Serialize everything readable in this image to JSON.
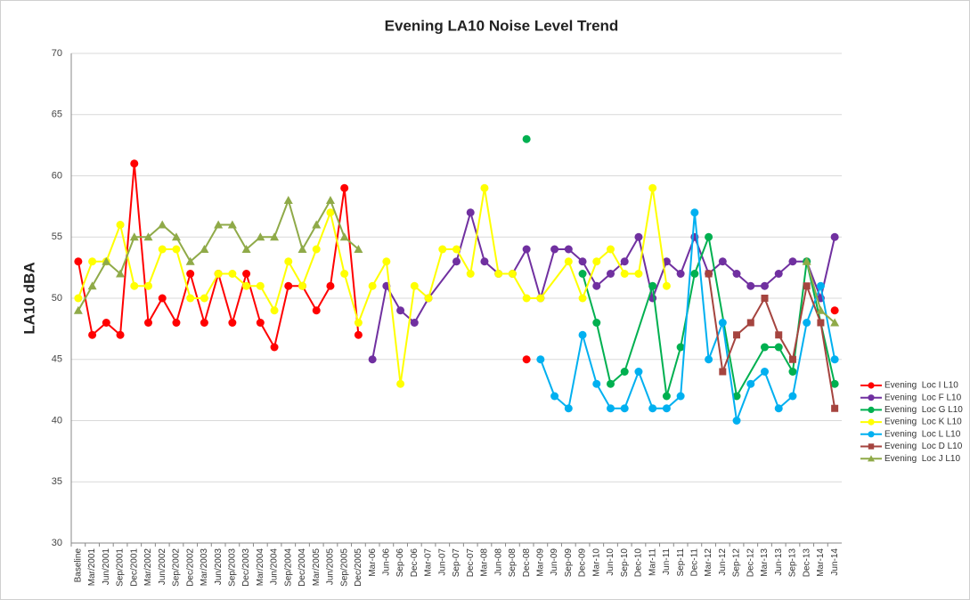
{
  "chart_data": {
    "type": "line",
    "title": "Evening LA10 Noise Level Trend",
    "y_label": "LA10 dBA",
    "categories": [
      "Baseline",
      "Mar/2001",
      "Jun/2001",
      "Sep/2001",
      "Dec/2001",
      "Mar/2002",
      "Jun/2002",
      "Sep/2002",
      "Dec/2002",
      "Mar/2003",
      "Jun/2003",
      "Sep/2003",
      "Dec/2003",
      "Mar/2004",
      "Jun/2004",
      "Sep/2004",
      "Dec/2004",
      "Mar/2005",
      "Jun/2005",
      "Sep/2005",
      "Dec/2005",
      "Mar-06",
      "Jun-06",
      "Sep-06",
      "Dec-06",
      "Mar-07",
      "Jun-07",
      "Sep-07",
      "Dec-07",
      "Mar-08",
      "Jun-08",
      "Sep-08",
      "Dec-08",
      "Mar-09",
      "Jun-09",
      "Sep-09",
      "Dec-09",
      "Mar-10",
      "Jun-10",
      "Sep-10",
      "Dec-10",
      "Mar-11",
      "Jun-11",
      "Sep-11",
      "Dec-11",
      "Mar-12",
      "Jun-12",
      "Sep-12",
      "Dec-12",
      "Mar-13",
      "Jun-13",
      "Sep-13",
      "Dec-13",
      "Mar-14",
      "Jun-14"
    ],
    "series": [
      {
        "name": "Evening  Loc I L10",
        "color": "#ff0000",
        "marker": "circle",
        "values": [
          53,
          47,
          48,
          47,
          61,
          48,
          50,
          48,
          52,
          48,
          52,
          48,
          52,
          48,
          46,
          51,
          51,
          49,
          51,
          59,
          47,
          null,
          null,
          null,
          null,
          null,
          null,
          null,
          null,
          null,
          null,
          null,
          45,
          null,
          null,
          null,
          null,
          null,
          null,
          null,
          null,
          null,
          null,
          null,
          null,
          null,
          null,
          null,
          null,
          null,
          null,
          null,
          null,
          null,
          49
        ]
      },
      {
        "name": "Evening  Loc F L10",
        "color": "#7030a0",
        "marker": "circle",
        "values": [
          null,
          null,
          null,
          null,
          null,
          null,
          null,
          null,
          null,
          null,
          null,
          null,
          null,
          null,
          null,
          null,
          null,
          null,
          null,
          null,
          null,
          45,
          51,
          49,
          48,
          50,
          null,
          53,
          57,
          53,
          52,
          52,
          54,
          50,
          54,
          54,
          53,
          51,
          52,
          53,
          55,
          50,
          53,
          52,
          55,
          52,
          53,
          52,
          51,
          51,
          52,
          53,
          53,
          50,
          55
        ]
      },
      {
        "name": "Evening  Loc G L10",
        "color": "#00b050",
        "marker": "circle",
        "values": [
          null,
          null,
          null,
          null,
          null,
          null,
          null,
          null,
          null,
          null,
          null,
          null,
          null,
          null,
          null,
          null,
          null,
          null,
          null,
          null,
          null,
          null,
          null,
          null,
          null,
          null,
          null,
          null,
          null,
          null,
          null,
          null,
          63,
          null,
          null,
          null,
          52,
          48,
          43,
          44,
          null,
          51,
          42,
          46,
          52,
          55,
          null,
          42,
          null,
          46,
          46,
          44,
          53,
          null,
          43
        ]
      },
      {
        "name": "Evening  Loc K L10",
        "color": "#ffff00",
        "marker": "circle",
        "values": [
          50,
          53,
          53,
          56,
          51,
          51,
          54,
          54,
          50,
          50,
          52,
          52,
          51,
          51,
          49,
          53,
          51,
          54,
          57,
          52,
          48,
          51,
          53,
          43,
          51,
          50,
          54,
          54,
          52,
          59,
          52,
          52,
          50,
          50,
          null,
          53,
          50,
          53,
          54,
          52,
          52,
          59,
          51,
          null,
          null,
          null,
          null,
          null,
          null,
          null,
          null,
          null,
          null,
          null,
          null
        ]
      },
      {
        "name": "Evening  Loc L L10",
        "color": "#00b0f0",
        "marker": "circle",
        "values": [
          null,
          null,
          null,
          null,
          null,
          null,
          null,
          null,
          null,
          null,
          null,
          null,
          null,
          null,
          null,
          null,
          null,
          null,
          null,
          null,
          null,
          null,
          null,
          null,
          null,
          null,
          null,
          null,
          null,
          null,
          null,
          null,
          null,
          45,
          42,
          41,
          47,
          43,
          41,
          41,
          44,
          41,
          41,
          42,
          57,
          45,
          48,
          40,
          43,
          44,
          41,
          42,
          48,
          51,
          45
        ]
      },
      {
        "name": "Evening  Loc D L10",
        "color": "#a5443f",
        "marker": "square",
        "values": [
          null,
          null,
          null,
          null,
          null,
          null,
          null,
          null,
          null,
          null,
          null,
          null,
          null,
          null,
          null,
          null,
          null,
          null,
          null,
          null,
          null,
          null,
          null,
          null,
          null,
          null,
          null,
          null,
          null,
          null,
          null,
          null,
          null,
          null,
          null,
          null,
          null,
          null,
          null,
          null,
          null,
          null,
          null,
          null,
          null,
          52,
          44,
          47,
          48,
          50,
          47,
          45,
          51,
          48,
          41
        ]
      },
      {
        "name": "Evening  Loc J L10",
        "color": "#8faa48",
        "marker": "triangle",
        "values": [
          49,
          51,
          53,
          52,
          55,
          55,
          56,
          55,
          53,
          54,
          56,
          56,
          54,
          55,
          55,
          58,
          54,
          56,
          58,
          55,
          54,
          null,
          null,
          null,
          null,
          null,
          null,
          null,
          null,
          null,
          null,
          null,
          null,
          null,
          null,
          null,
          null,
          null,
          null,
          null,
          null,
          null,
          null,
          null,
          null,
          null,
          null,
          null,
          null,
          null,
          null,
          null,
          53,
          49,
          48
        ]
      }
    ],
    "ylim": [
      30,
      70
    ],
    "yticks": [
      30,
      35,
      40,
      45,
      50,
      55,
      60,
      65,
      70
    ],
    "grid": true,
    "legend": "right"
  }
}
